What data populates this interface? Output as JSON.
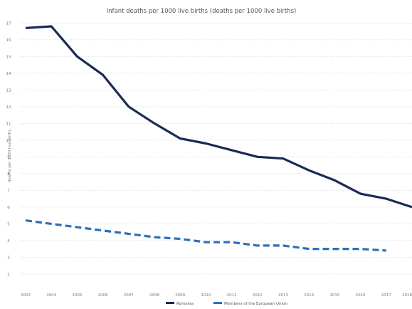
{
  "chart_data": {
    "type": "line",
    "title": "Infant deaths per 1000 live births (deaths per 1000 live births)",
    "ylabel": "deaths per 1000 live births",
    "xlabel": "",
    "x": [
      2003,
      2004,
      2005,
      2006,
      2007,
      2008,
      2009,
      2010,
      2011,
      2012,
      2013,
      2014,
      2015,
      2016,
      2017,
      2018
    ],
    "x_tick_labels": [
      "2003",
      "2004",
      "2005",
      "2006",
      "2007",
      "2008",
      "2009",
      "2010",
      "2011",
      "2012",
      "2013",
      "2014",
      "2015",
      "2016",
      "2017",
      "2018"
    ],
    "y_tick_labels": [
      "2",
      "3",
      "4",
      "5",
      "6",
      "7",
      "8",
      "9",
      "10",
      "11",
      "12",
      "13",
      "14",
      "15",
      "16",
      "17"
    ],
    "y_ticks": [
      2,
      3,
      4,
      5,
      6,
      7,
      8,
      9,
      10,
      11,
      12,
      13,
      14,
      15,
      16,
      17
    ],
    "ylim": [
      1.1,
      17.1
    ],
    "grid": true,
    "legend_position": "bottom-center",
    "series": [
      {
        "name": "Romania",
        "color": "#1a2a56",
        "dashed": false,
        "values": [
          16.7,
          16.8,
          15.0,
          13.9,
          12.0,
          11.0,
          10.1,
          9.8,
          9.4,
          9.0,
          8.9,
          8.2,
          7.6,
          6.8,
          6.5,
          6.0
        ]
      },
      {
        "name": "Members of the European Union",
        "color": "#2d6fb8",
        "dashed": true,
        "values": [
          5.2,
          5.0,
          4.8,
          4.6,
          4.4,
          4.2,
          4.1,
          3.9,
          3.9,
          3.7,
          3.7,
          3.5,
          3.5,
          3.5,
          3.4,
          null
        ]
      }
    ]
  }
}
